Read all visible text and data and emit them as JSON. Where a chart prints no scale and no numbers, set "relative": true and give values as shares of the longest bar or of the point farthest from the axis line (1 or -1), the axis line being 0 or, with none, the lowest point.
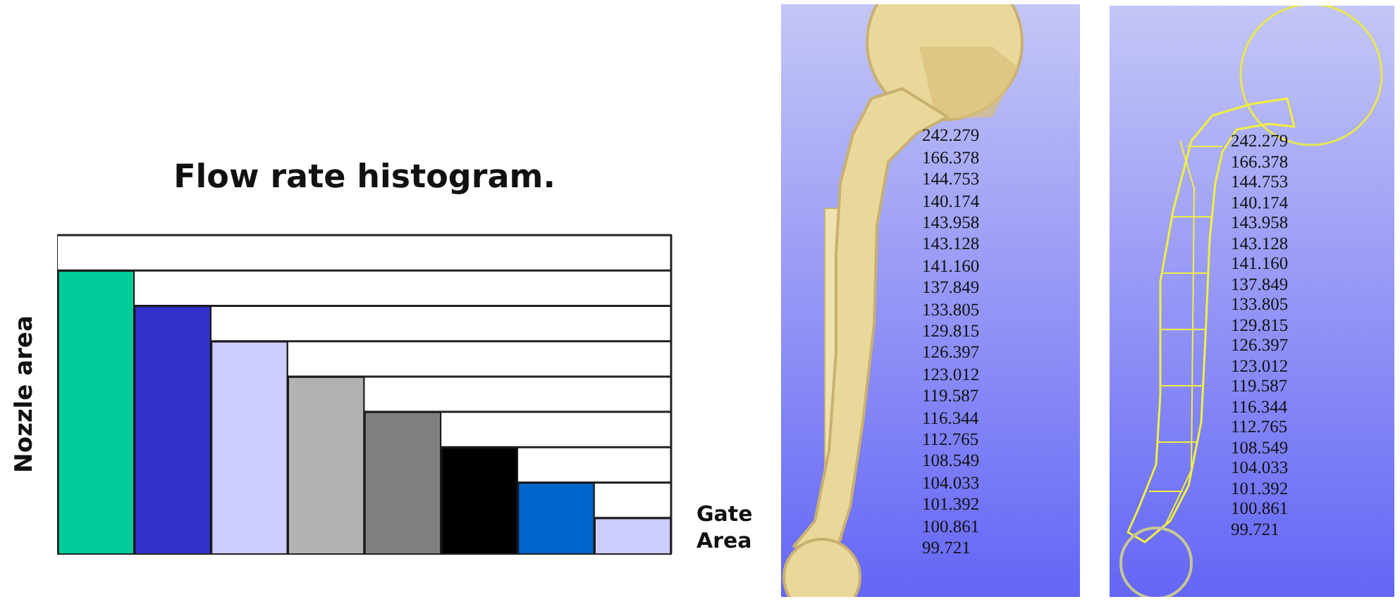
{
  "chart_data": {
    "type": "bar",
    "title": "Flow rate histogram.",
    "ylabel": "Nozzle area",
    "categories": [
      null,
      null,
      null,
      null,
      null,
      null,
      null,
      null
    ],
    "values": [
      1,
      0.875,
      0.75,
      0.625,
      0.5,
      0.375,
      0.25,
      0.125
    ],
    "colors": [
      "#00cc99",
      "#3333cc",
      "#ccccff",
      "#b2b2b2",
      "#808080",
      "#000000",
      "#0066cc",
      "#ccccff"
    ],
    "relative": true,
    "ref_lines": [
      {
        "axis": "y",
        "value": 1,
        "color": "#222222"
      },
      {
        "axis": "y",
        "value": 0.875,
        "color": "#222222"
      },
      {
        "axis": "y",
        "value": 0.75,
        "color": "#222222"
      },
      {
        "axis": "y",
        "value": 0.625,
        "color": "#222222"
      },
      {
        "axis": "y",
        "value": 0.5,
        "color": "#222222"
      },
      {
        "axis": "y",
        "value": 0.375,
        "color": "#222222"
      },
      {
        "axis": "y",
        "value": 0.25,
        "color": "#222222"
      },
      {
        "axis": "y",
        "value": 0.125,
        "color": "#222222"
      }
    ],
    "annotations": [
      "Gate\nArea",
      "242.279\n166.378\n144.753\n140.174\n143.958\n143.128\n141.160\n137.849\n133.805\n129.815\n126.397\n123.012\n119.587\n116.344\n112.765\n108.549\n104.033\n101.392\n100.861\n99.721",
      "242.279\n166.378\n144.753\n140.174\n143.958\n143.128\n141.160\n137.849\n133.805\n129.815\n126.397\n123.012\n119.587\n116.344\n112.765\n108.549\n104.033\n101.392\n100.861\n99.721"
    ]
  }
}
